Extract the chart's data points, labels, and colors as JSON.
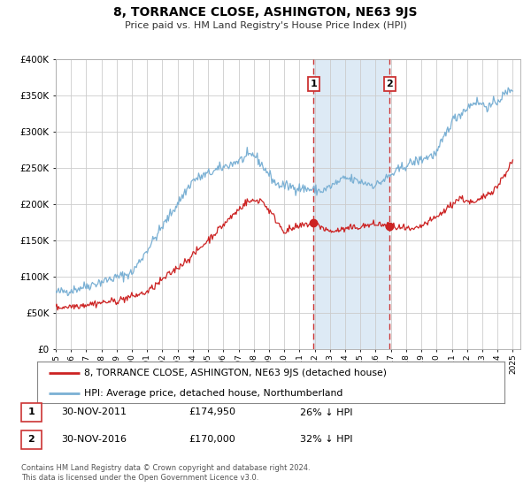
{
  "title": "8, TORRANCE CLOSE, ASHINGTON, NE63 9JS",
  "subtitle": "Price paid vs. HM Land Registry's House Price Index (HPI)",
  "background_color": "#ffffff",
  "plot_bg_color": "#ffffff",
  "grid_color": "#cccccc",
  "line1_color": "#cc2222",
  "line2_color": "#7ab0d4",
  "sale1_year": 2011.917,
  "sale1_value": 174950,
  "sale2_year": 2016.917,
  "sale2_value": 170000,
  "shade_color": "#ddeaf5",
  "legend_line1": "8, TORRANCE CLOSE, ASHINGTON, NE63 9JS (detached house)",
  "legend_line2": "HPI: Average price, detached house, Northumberland",
  "table_row1_date": "30-NOV-2011",
  "table_row1_price": "£174,950",
  "table_row1_hpi": "26% ↓ HPI",
  "table_row2_date": "30-NOV-2016",
  "table_row2_price": "£170,000",
  "table_row2_hpi": "32% ↓ HPI",
  "footer": "Contains HM Land Registry data © Crown copyright and database right 2024.\nThis data is licensed under the Open Government Licence v3.0.",
  "ylim": [
    0,
    400000
  ],
  "xlim_start": 1995.0,
  "xlim_end": 2025.5,
  "yticks": [
    0,
    50000,
    100000,
    150000,
    200000,
    250000,
    300000,
    350000,
    400000
  ],
  "ylabels": [
    "£0",
    "£50K",
    "£100K",
    "£150K",
    "£200K",
    "£250K",
    "£300K",
    "£350K",
    "£400K"
  ]
}
